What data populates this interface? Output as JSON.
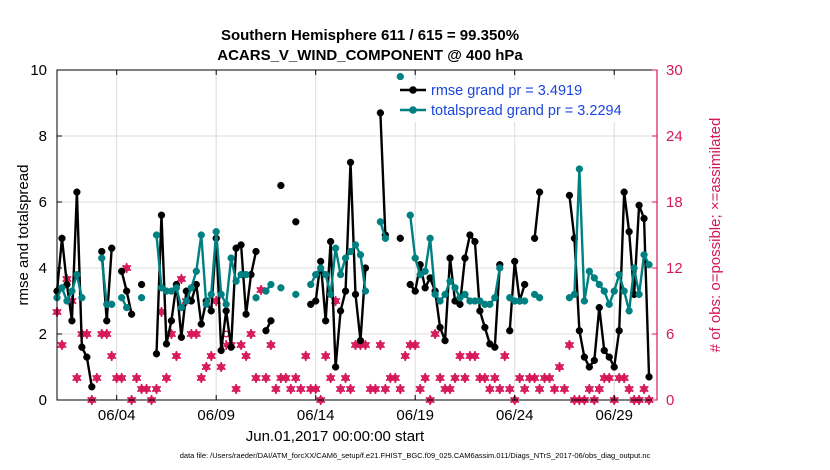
{
  "chart_data": {
    "type": "line",
    "title_line1": "Southern Hemisphere 611 / 615 = 99.350%",
    "title_line2": "ACARS_V_WIND_COMPONENT @ 400 hPa",
    "xlabel": "Jun.01,2017 00:00:00 start",
    "ylabel_left": "rmse and totalspread",
    "ylabel_right": "# of obs: o=possible; ×=assimilated",
    "xlim": [
      1,
      31.15
    ],
    "ylim_left": [
      0,
      10
    ],
    "ylim_right": [
      0,
      30
    ],
    "xticks": [
      {
        "value": 4,
        "label": "06/04"
      },
      {
        "value": 9,
        "label": "06/09"
      },
      {
        "value": 14,
        "label": "06/14"
      },
      {
        "value": 19,
        "label": "06/19"
      },
      {
        "value": 24,
        "label": "06/24"
      },
      {
        "value": 29,
        "label": "06/29"
      }
    ],
    "yticks_left": [
      0,
      2,
      4,
      6,
      8,
      10
    ],
    "yticks_right": [
      0,
      6,
      12,
      18,
      24,
      30
    ],
    "colors": {
      "rmse": "#000000",
      "spread": "#008080",
      "obs": "#d6185b",
      "legend_text": "#1a46e0"
    },
    "legend": {
      "position": "top-right"
    },
    "series": [
      {
        "name": "rmse grand pr = 3.4919",
        "x": [
          1.0,
          1.25,
          1.5,
          1.75,
          2.0,
          2.25,
          2.5,
          2.75,
          3.25,
          3.5,
          3.75,
          4.25,
          4.5,
          4.75,
          5.25,
          6.0,
          6.25,
          6.5,
          6.75,
          7.0,
          7.25,
          7.5,
          7.75,
          8.0,
          8.25,
          8.5,
          8.75,
          9.0,
          9.25,
          9.5,
          9.75,
          10.0,
          10.25,
          10.5,
          10.75,
          11.0,
          11.5,
          11.75,
          12.25,
          13.0,
          13.75,
          14.0,
          14.25,
          14.5,
          14.75,
          15.0,
          15.25,
          15.5,
          15.75,
          16.0,
          16.25,
          16.5,
          17.25,
          17.5,
          18.25,
          18.75,
          19.0,
          19.25,
          19.5,
          19.75,
          20.0,
          20.25,
          20.5,
          20.75,
          21.0,
          21.25,
          21.5,
          21.75,
          22.0,
          22.25,
          22.5,
          22.75,
          23.0,
          23.25,
          23.75,
          24.0,
          24.25,
          24.5,
          25.0,
          25.25,
          26.75,
          27.0,
          27.25,
          27.5,
          27.75,
          28.0,
          28.25,
          28.5,
          28.75,
          29.0,
          29.25,
          29.5,
          29.75,
          30.0,
          30.25,
          30.5,
          30.75
        ],
        "values": [
          3.3,
          4.9,
          3.5,
          2.4,
          6.3,
          1.6,
          1.3,
          0.4,
          4.5,
          2.4,
          4.6,
          3.9,
          3.3,
          2.6,
          3.5,
          1.4,
          5.6,
          1.7,
          2.4,
          3.5,
          1.9,
          3.3,
          3.0,
          3.5,
          2.3,
          3.0,
          2.7,
          4.9,
          1.5,
          2.7,
          1.6,
          4.6,
          4.7,
          2.6,
          3.8,
          4.5,
          2.1,
          2.4,
          6.5,
          5.4,
          2.9,
          3.0,
          4.2,
          2.4,
          4.8,
          1.0,
          2.7,
          3.3,
          7.2,
          3.2,
          1.8,
          4.0,
          8.7,
          5.0,
          4.9,
          3.5,
          3.3,
          4.1,
          3.4,
          3.7,
          3.3,
          2.2,
          1.8,
          4.3,
          3.0,
          2.9,
          4.3,
          5.0,
          4.8,
          2.7,
          2.2,
          1.7,
          1.6,
          4.1,
          2.1,
          4.2,
          3.0,
          3.5,
          4.9,
          6.3,
          6.2,
          4.9,
          2.1,
          1.3,
          1.0,
          1.2,
          2.8,
          1.5,
          1.3,
          1.0,
          2.1,
          6.3,
          5.1,
          3.2,
          5.9,
          5.5,
          0.7
        ]
      },
      {
        "name": "totalspread grand pr = 3.2294",
        "x": [
          1.0,
          1.25,
          1.5,
          1.75,
          2.0,
          2.25,
          3.25,
          3.5,
          3.75,
          4.25,
          4.5,
          5.25,
          6.0,
          6.25,
          6.5,
          6.75,
          7.0,
          7.25,
          7.5,
          7.75,
          8.0,
          8.25,
          8.5,
          8.75,
          9.0,
          9.25,
          9.5,
          9.75,
          10.0,
          10.25,
          10.5,
          11.0,
          11.5,
          11.75,
          12.25,
          13.0,
          13.75,
          14.0,
          14.25,
          14.5,
          14.75,
          15.0,
          15.25,
          15.5,
          15.75,
          16.0,
          16.25,
          16.5,
          17.25,
          17.5,
          18.25,
          18.75,
          19.0,
          19.25,
          19.5,
          19.75,
          20.0,
          20.25,
          20.5,
          20.75,
          21.0,
          21.25,
          21.5,
          21.75,
          22.0,
          22.25,
          22.5,
          22.75,
          23.0,
          23.25,
          23.75,
          24.0,
          24.25,
          24.5,
          25.0,
          25.25,
          26.75,
          27.0,
          27.25,
          27.5,
          27.75,
          28.0,
          28.25,
          28.5,
          28.75,
          29.0,
          29.25,
          29.5,
          29.75,
          30.0,
          30.25,
          30.5,
          30.75
        ],
        "values": [
          3.1,
          3.4,
          3.0,
          3.3,
          3.8,
          3.1,
          4.3,
          2.9,
          2.9,
          3.1,
          2.8,
          3.1,
          5.0,
          3.4,
          3.3,
          3.3,
          3.4,
          2.8,
          3.0,
          3.4,
          3.9,
          5.0,
          2.9,
          3.2,
          5.1,
          3.2,
          2.9,
          4.3,
          3.6,
          3.8,
          3.8,
          3.1,
          3.3,
          3.5,
          3.4,
          3.2,
          3.5,
          3.8,
          4.0,
          3.8,
          3.2,
          4.6,
          3.8,
          4.3,
          4.5,
          4.7,
          4.4,
          3.3,
          5.4,
          4.9,
          9.8,
          5.6,
          4.3,
          3.8,
          3.9,
          4.9,
          3.2,
          3.0,
          3.2,
          3.6,
          3.4,
          3.1,
          3.2,
          3.0,
          3.0,
          3.0,
          2.9,
          2.9,
          3.1,
          4.0,
          3.1,
          3.0,
          3.0,
          3.0,
          3.2,
          3.1,
          3.1,
          3.2,
          7.0,
          3.0,
          3.9,
          3.7,
          3.5,
          3.3,
          2.9,
          3.3,
          3.8,
          3.3,
          2.7,
          4.0,
          3.2,
          4.4,
          4.1
        ]
      }
    ],
    "obs_assimilated": {
      "x": [
        1.0,
        1.25,
        1.5,
        1.75,
        2.0,
        2.25,
        2.5,
        2.75,
        3.0,
        3.25,
        3.5,
        3.75,
        4.0,
        4.25,
        4.5,
        4.75,
        5.0,
        5.25,
        5.5,
        5.75,
        6.0,
        6.25,
        6.5,
        6.75,
        7.0,
        7.25,
        7.5,
        7.75,
        8.0,
        8.25,
        8.5,
        8.75,
        9.0,
        9.25,
        9.5,
        9.75,
        10.0,
        10.25,
        10.5,
        10.75,
        11.0,
        11.25,
        11.5,
        11.75,
        12.0,
        12.25,
        12.5,
        12.75,
        13.0,
        13.25,
        13.5,
        13.75,
        14.0,
        14.25,
        14.5,
        14.75,
        15.0,
        15.25,
        15.5,
        15.75,
        16.0,
        16.25,
        16.5,
        16.75,
        17.0,
        17.25,
        17.5,
        17.75,
        18.0,
        18.25,
        18.5,
        18.75,
        19.0,
        19.25,
        19.5,
        19.75,
        20.0,
        20.25,
        20.5,
        20.75,
        21.0,
        21.25,
        21.5,
        21.75,
        22.0,
        22.25,
        22.5,
        22.75,
        23.0,
        23.25,
        23.5,
        23.75,
        24.0,
        24.25,
        24.5,
        24.75,
        25.0,
        25.25,
        25.5,
        25.75,
        26.0,
        26.25,
        26.5,
        26.75,
        27.0,
        27.25,
        27.5,
        27.75,
        28.0,
        28.25,
        28.5,
        28.75,
        29.0,
        29.25,
        29.5,
        29.75,
        30.0,
        30.25,
        30.5,
        30.75
      ],
      "values": [
        8,
        5,
        11,
        9,
        2,
        6,
        6,
        0,
        2,
        6,
        6,
        4,
        2,
        2,
        12,
        0,
        2,
        1,
        1,
        0,
        1,
        8,
        2,
        6,
        4,
        11,
        9,
        6,
        6,
        2,
        3,
        4,
        9,
        3,
        5,
        5,
        1,
        5,
        4,
        6,
        2,
        10,
        2,
        5,
        1,
        2,
        2,
        1,
        2,
        1,
        4,
        1,
        1,
        0,
        4,
        2,
        9,
        1,
        2,
        1,
        5,
        5,
        5,
        1,
        1,
        5,
        1,
        2,
        2,
        1,
        4,
        5,
        5,
        1,
        2,
        0,
        6,
        2,
        1,
        1,
        2,
        4,
        2,
        4,
        4,
        2,
        2,
        1,
        2,
        1,
        4,
        1,
        0,
        2,
        1,
        2,
        2,
        1,
        2,
        2,
        1,
        3,
        1,
        5,
        0,
        0,
        0,
        1,
        0,
        1,
        2,
        2,
        0,
        2,
        2,
        1,
        0,
        0,
        1,
        0
      ]
    },
    "obs_possible": {
      "x": [
        1.0,
        1.25,
        1.5,
        1.75,
        2.0,
        2.25,
        2.5,
        2.75,
        3.0,
        3.25,
        3.5,
        3.75,
        4.0,
        4.25,
        4.5,
        4.75,
        5.0,
        5.25,
        5.5,
        5.75,
        6.0,
        6.25,
        6.5,
        6.75,
        7.0,
        7.25,
        7.5,
        7.75,
        8.0,
        8.25,
        8.5,
        8.75,
        9.0,
        9.25,
        9.5,
        9.75,
        10.0,
        10.25,
        10.5,
        10.75,
        11.0,
        11.25,
        11.5,
        11.75,
        12.0,
        12.25,
        12.5,
        12.75,
        13.0,
        13.25,
        13.5,
        13.75,
        14.0,
        14.25,
        14.5,
        14.75,
        15.0,
        15.25,
        15.5,
        15.75,
        16.0,
        16.25,
        16.5,
        16.75,
        17.0,
        17.25,
        17.5,
        17.75,
        18.0,
        18.25,
        18.5,
        18.75,
        19.0,
        19.25,
        19.5,
        19.75,
        20.0,
        20.25,
        20.5,
        20.75,
        21.0,
        21.25,
        21.5,
        21.75,
        22.0,
        22.25,
        22.5,
        22.75,
        23.0,
        23.25,
        23.5,
        23.75,
        24.0,
        24.25,
        24.5,
        24.75,
        25.0,
        25.25,
        25.5,
        25.75,
        26.0,
        26.25,
        26.5,
        26.75,
        27.0,
        27.25,
        27.5,
        27.75,
        28.0,
        28.25,
        28.5,
        28.75,
        29.0,
        29.25,
        29.5,
        29.75,
        30.0,
        30.25,
        30.5,
        30.75
      ],
      "values": [
        8,
        5,
        11,
        9,
        2,
        6,
        6,
        0,
        2,
        6,
        6,
        4,
        2,
        2,
        12,
        0,
        2,
        1,
        1,
        0,
        1,
        8,
        2,
        6,
        4,
        11,
        9,
        6,
        6,
        2,
        3,
        4,
        9,
        3,
        6,
        5,
        1,
        5,
        4,
        6,
        2,
        10,
        2,
        5,
        1,
        2,
        2,
        1,
        2,
        1,
        4,
        1,
        1,
        0,
        4,
        2,
        9,
        1,
        2,
        1,
        5,
        5,
        5,
        1,
        1,
        5,
        1,
        2,
        2,
        1,
        4,
        5,
        5,
        1,
        2,
        0,
        6,
        2,
        1,
        1,
        2,
        4,
        2,
        4,
        4,
        2,
        2,
        1,
        2,
        1,
        4,
        1,
        0,
        2,
        1,
        2,
        2,
        1,
        2,
        2,
        1,
        3,
        1,
        5,
        0,
        0,
        0,
        1,
        0,
        1,
        2,
        2,
        0,
        2,
        2,
        1,
        0,
        0,
        1,
        0
      ]
    },
    "footnote": "data file: /Users/raeder/DAI/ATM_forcXX/CAM6_setup/f.e21.FHIST_BGC.f09_025.CAM6assim.011/Diags_NTrS_2017-06/obs_diag_output.nc"
  }
}
